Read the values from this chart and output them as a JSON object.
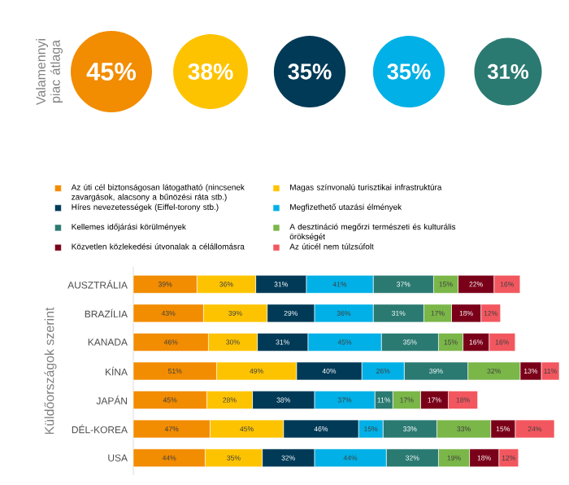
{
  "chart_data": [
    {
      "type": "other",
      "ylabel": "Valamennyi piac átlaga",
      "values": [
        45,
        38,
        35,
        35,
        31
      ],
      "value_labels": [
        "45%",
        "38%",
        "35%",
        "35%",
        "31%"
      ],
      "colors": [
        "#f28c00",
        "#fdc300",
        "#003a57",
        "#00b0e6",
        "#2a7a72"
      ]
    },
    {
      "type": "bar",
      "orientation": "horizontal",
      "stacked": true,
      "ylabel": "Küldőországok szerint",
      "legend": "top",
      "categories": [
        "AUSZTRÁLIA",
        "BRAZÍLIA",
        "KANADA",
        "KÍNA",
        "JAPÁN",
        "DÉL-KOREA",
        "USA"
      ],
      "series": [
        {
          "name": "Az úti cél biztonságosan látogatható (nincsenek zavargások, alacsony a bűnözési ráta stb.)",
          "color": "#f28c00",
          "values": [
            39,
            43,
            46,
            51,
            45,
            47,
            44
          ],
          "value_labels": [
            "39%",
            "43%",
            "46%",
            "51%",
            "45%",
            "47%",
            "44%"
          ]
        },
        {
          "name": "Magas színvonalú turisztikai infrastruktúra",
          "color": "#fdc300",
          "values": [
            36,
            39,
            30,
            49,
            28,
            45,
            35
          ],
          "value_labels": [
            "36%",
            "39%",
            "30%",
            "49%",
            "28%",
            "45%",
            "35%"
          ]
        },
        {
          "name": "Híres nevezetességek (Eiffel-torony stb.)",
          "color": "#003a57",
          "values": [
            31,
            29,
            31,
            40,
            38,
            46,
            32
          ],
          "value_labels": [
            "31%",
            "29%",
            "31%",
            "40%",
            "38%",
            "46%",
            "32%"
          ]
        },
        {
          "name": "Megfizethető utazási élmények",
          "color": "#00b0e6",
          "values": [
            41,
            36,
            45,
            26,
            37,
            15,
            44
          ],
          "value_labels": [
            "41%",
            "36%",
            "45%",
            "26%",
            "37%",
            "15%",
            "44%"
          ]
        },
        {
          "name": "Kellemes időjárási körülmények",
          "color": "#2a7a72",
          "values": [
            37,
            31,
            35,
            39,
            11,
            33,
            32
          ],
          "value_labels": [
            "37%",
            "31%",
            "35%",
            "39%",
            "11%",
            "33%",
            "32%"
          ]
        },
        {
          "name": "A desztináció megőrzi természeti és kulturális örökségét",
          "color": "#7ab648",
          "values": [
            15,
            17,
            15,
            32,
            17,
            33,
            19
          ],
          "value_labels": [
            "15%",
            "17%",
            "15%",
            "32%",
            "17%",
            "33%",
            "19%"
          ]
        },
        {
          "name": "Közvetlen közlekedési útvonalak a célállomásra",
          "color": "#7a0019",
          "values": [
            22,
            18,
            16,
            13,
            17,
            15,
            18
          ],
          "value_labels": [
            "22%",
            "18%",
            "16%",
            "13%",
            "17%",
            "15%",
            "18%"
          ]
        },
        {
          "name": "Az úticél nem túlzsúfolt",
          "color": "#f2575f",
          "values": [
            16,
            12,
            16,
            11,
            18,
            24,
            12
          ],
          "value_labels": [
            "16%",
            "12%",
            "16%",
            "11%",
            "18%",
            "24%",
            "12%"
          ]
        }
      ]
    }
  ]
}
